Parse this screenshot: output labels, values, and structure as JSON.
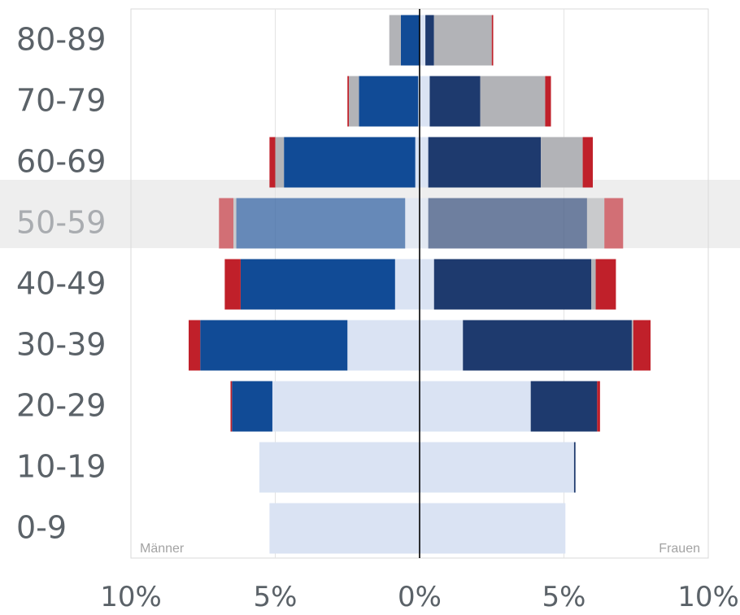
{
  "chart_data": {
    "type": "bar",
    "orientation": "horizontal-diverging",
    "categories": [
      "0-9",
      "10-19",
      "20-29",
      "30-39",
      "40-49",
      "50-59",
      "60-69",
      "70-79",
      "80-89"
    ],
    "highlighted_category": "50-59",
    "left_label": "Männer",
    "right_label": "Frauen",
    "x_ticks": [
      "10%",
      "5%",
      "0%",
      "5%",
      "10%"
    ],
    "xlim": [
      -10,
      10
    ],
    "grid": true,
    "series_colors": [
      "#dae3f3",
      "#114b96",
      "#b2b3b7",
      "#c0202a"
    ],
    "series_colors_female": [
      "#dae3f3",
      "#1e3a6e",
      "#b2b3b7",
      "#c0202a"
    ],
    "male": {
      "segments": [
        [
          5.2,
          0,
          0,
          0
        ],
        [
          5.55,
          0,
          0,
          0
        ],
        [
          5.1,
          1.4,
          0,
          0.05
        ],
        [
          2.5,
          5.1,
          0,
          0.4
        ],
        [
          0.85,
          5.35,
          0,
          0.55
        ],
        [
          0.5,
          5.85,
          0.1,
          0.5
        ],
        [
          0.15,
          4.55,
          0.3,
          0.2
        ],
        [
          0.05,
          2.05,
          0.35,
          0.05
        ],
        [
          0,
          0.65,
          0.4,
          0
        ]
      ]
    },
    "female": {
      "segments": [
        [
          5.05,
          0,
          0,
          0
        ],
        [
          5.35,
          0.05,
          0,
          0
        ],
        [
          3.85,
          2.3,
          0,
          0.1
        ],
        [
          1.5,
          5.85,
          0.05,
          0.6
        ],
        [
          0.5,
          5.45,
          0.15,
          0.7
        ],
        [
          0.3,
          5.5,
          0.6,
          0.65
        ],
        [
          0.3,
          3.9,
          1.45,
          0.35
        ],
        [
          0.35,
          1.75,
          2.25,
          0.2
        ],
        [
          0.2,
          0.3,
          2.0,
          0.05
        ]
      ]
    }
  }
}
